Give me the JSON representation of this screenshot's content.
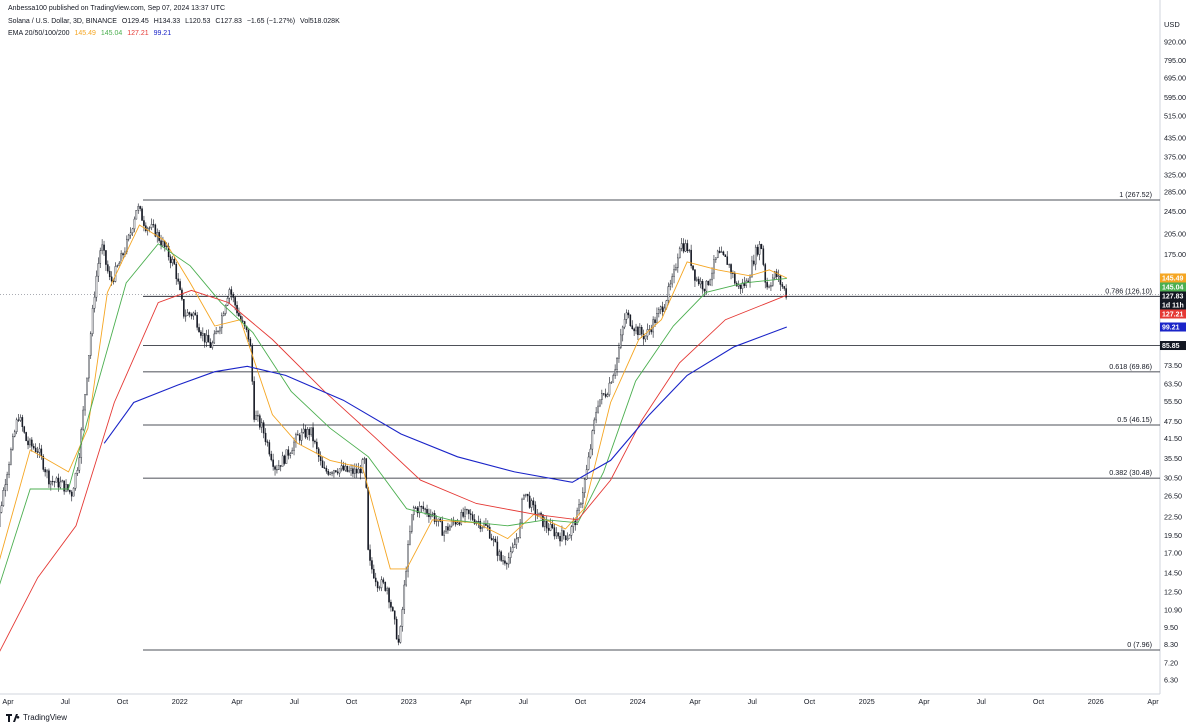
{
  "header": {
    "published": "Anbessa100 published on TradingView.com, Sep 07, 2024 13:37 UTC",
    "symbol": "Solana / U.S. Dollar, 3D, BINANCE",
    "open": "O129.45",
    "high": "H134.33",
    "low": "L120.53",
    "close": "C127.83",
    "change": "−1.65 (−1.27%)",
    "volume": "Vol518.028K",
    "ema_label": "EMA 20/50/100/200",
    "ema20": "145.49",
    "ema50": "145.04",
    "ema100": "127.21",
    "ema200": "99.21"
  },
  "axis_unit": "USD",
  "brand": "TradingView",
  "colors": {
    "ema20": "#f5a623",
    "ema50": "#4caf50",
    "ema100": "#e53935",
    "ema200": "#1a24c8",
    "price_badge": "#131722",
    "level_badge": "#131722",
    "candle": "#131722"
  },
  "chart_data": {
    "type": "candlestick",
    "y_scale": "log",
    "y_ticks": [
      "920.00",
      "795.00",
      "695.00",
      "595.00",
      "515.00",
      "435.00",
      "375.00",
      "325.00",
      "285.00",
      "245.00",
      "205.00",
      "175.00",
      "73.50",
      "63.50",
      "55.50",
      "47.50",
      "41.50",
      "35.50",
      "30.50",
      "26.50",
      "22.50",
      "19.50",
      "17.00",
      "14.50",
      "12.50",
      "10.90",
      "9.50",
      "8.30",
      "7.20",
      "6.30"
    ],
    "x_ticks": [
      "Apr",
      "Jul",
      "Oct",
      "2022",
      "Apr",
      "Jul",
      "Oct",
      "2023",
      "Apr",
      "Jul",
      "Oct",
      "2024",
      "Apr",
      "Jul",
      "Oct",
      "2025",
      "Apr",
      "Jul",
      "Oct",
      "2026",
      "Apr"
    ],
    "fib_levels": [
      {
        "label": "1 (267.52)",
        "value": 267.52
      },
      {
        "label": "0.786 (126.10)",
        "value": 126.1
      },
      {
        "label": "0.618 (69.86)",
        "value": 69.86
      },
      {
        "label": "0.5 (46.15)",
        "value": 46.15
      },
      {
        "label": "0.382 (30.48)",
        "value": 30.48
      },
      {
        "label": "0 (7.96)",
        "value": 7.96
      }
    ],
    "horizontal_level": {
      "label": "85.85",
      "value": 85.85
    },
    "price_badges": [
      {
        "label": "145.49",
        "value": 145.49,
        "color": "#f5a623"
      },
      {
        "label": "145.04",
        "value": 145.04,
        "color": "#4caf50"
      },
      {
        "label": "127.83",
        "value": 127.83,
        "color": "#131722"
      },
      {
        "label": "1d 11h",
        "value": 121.5,
        "color": "#131722"
      },
      {
        "label": "127.21",
        "value": 116.0,
        "color": "#e53935"
      },
      {
        "label": "99.21",
        "value": 99.21,
        "color": "#1a24c8"
      }
    ],
    "price_path": [
      [
        "2021-03-20",
        16.0
      ],
      [
        "2021-04-10",
        30.0
      ],
      [
        "2021-05-01",
        50.0
      ],
      [
        "2021-05-15",
        40.0
      ],
      [
        "2021-06-01",
        38.0
      ],
      [
        "2021-06-20",
        30.0
      ],
      [
        "2021-07-10",
        29.0
      ],
      [
        "2021-07-25",
        27.0
      ],
      [
        "2021-08-05",
        35.0
      ],
      [
        "2021-08-20",
        75.0
      ],
      [
        "2021-09-01",
        140.0
      ],
      [
        "2021-09-10",
        190.0
      ],
      [
        "2021-09-25",
        140.0
      ],
      [
        "2021-10-10",
        165.0
      ],
      [
        "2021-10-25",
        200.0
      ],
      [
        "2021-11-06",
        255.0
      ],
      [
        "2021-11-20",
        220.0
      ],
      [
        "2021-12-05",
        210.0
      ],
      [
        "2021-12-20",
        185.0
      ],
      [
        "2022-01-05",
        160.0
      ],
      [
        "2022-01-20",
        110.0
      ],
      [
        "2022-02-05",
        110.0
      ],
      [
        "2022-02-20",
        92.0
      ],
      [
        "2022-03-05",
        85.0
      ],
      [
        "2022-03-20",
        105.0
      ],
      [
        "2022-04-02",
        135.0
      ],
      [
        "2022-04-20",
        105.0
      ],
      [
        "2022-05-05",
        90.0
      ],
      [
        "2022-05-12",
        50.0
      ],
      [
        "2022-05-25",
        45.0
      ],
      [
        "2022-06-15",
        33.0
      ],
      [
        "2022-07-01",
        36.0
      ],
      [
        "2022-07-20",
        42.0
      ],
      [
        "2022-08-10",
        44.0
      ],
      [
        "2022-08-30",
        32.0
      ],
      [
        "2022-09-20",
        33.0
      ],
      [
        "2022-10-10",
        32.0
      ],
      [
        "2022-10-25",
        32.0
      ],
      [
        "2022-11-05",
        35.0
      ],
      [
        "2022-11-10",
        16.0
      ],
      [
        "2022-11-25",
        13.5
      ],
      [
        "2022-12-10",
        13.0
      ],
      [
        "2022-12-29",
        8.2
      ],
      [
        "2023-01-10",
        16.0
      ],
      [
        "2023-01-20",
        24.0
      ],
      [
        "2023-02-05",
        24.0
      ],
      [
        "2023-02-20",
        23.0
      ],
      [
        "2023-03-10",
        20.0
      ],
      [
        "2023-03-25",
        21.5
      ],
      [
        "2023-04-15",
        23.0
      ],
      [
        "2023-05-01",
        22.0
      ],
      [
        "2023-05-20",
        20.5
      ],
      [
        "2023-06-10",
        16.0
      ],
      [
        "2023-06-25",
        16.5
      ],
      [
        "2023-07-10",
        21.0
      ],
      [
        "2023-07-15",
        28.0
      ],
      [
        "2023-07-30",
        24.0
      ],
      [
        "2023-08-20",
        21.0
      ],
      [
        "2023-09-10",
        19.5
      ],
      [
        "2023-09-25",
        19.5
      ],
      [
        "2023-10-10",
        23.0
      ],
      [
        "2023-10-25",
        33.0
      ],
      [
        "2023-11-10",
        55.0
      ],
      [
        "2023-11-25",
        60.0
      ],
      [
        "2023-12-10",
        75.0
      ],
      [
        "2023-12-25",
        110.0
      ],
      [
        "2024-01-10",
        98.0
      ],
      [
        "2024-01-25",
        92.0
      ],
      [
        "2024-02-10",
        105.0
      ],
      [
        "2024-02-25",
        120.0
      ],
      [
        "2024-03-10",
        145.0
      ],
      [
        "2024-03-20",
        190.0
      ],
      [
        "2024-04-01",
        185.0
      ],
      [
        "2024-04-15",
        145.0
      ],
      [
        "2024-05-01",
        135.0
      ],
      [
        "2024-05-20",
        175.0
      ],
      [
        "2024-06-05",
        165.0
      ],
      [
        "2024-06-20",
        135.0
      ],
      [
        "2024-07-05",
        140.0
      ],
      [
        "2024-07-20",
        180.0
      ],
      [
        "2024-07-28",
        190.0
      ],
      [
        "2024-08-05",
        135.0
      ],
      [
        "2024-08-20",
        150.0
      ],
      [
        "2024-09-07",
        127.83
      ]
    ],
    "ema20": [
      [
        "2021-03-20",
        13.0
      ],
      [
        "2021-05-20",
        38.0
      ],
      [
        "2021-07-20",
        32.0
      ],
      [
        "2021-08-20",
        45.0
      ],
      [
        "2021-09-20",
        130.0
      ],
      [
        "2021-11-10",
        220.0
      ],
      [
        "2021-12-20",
        195.0
      ],
      [
        "2022-01-30",
        140.0
      ],
      [
        "2022-03-10",
        100.0
      ],
      [
        "2022-04-20",
        105.0
      ],
      [
        "2022-06-10",
        50.0
      ],
      [
        "2022-07-20",
        40.0
      ],
      [
        "2022-09-10",
        35.0
      ],
      [
        "2022-11-01",
        33.0
      ],
      [
        "2022-12-15",
        15.0
      ],
      [
        "2023-01-10",
        15.0
      ],
      [
        "2023-02-20",
        22.0
      ],
      [
        "2023-05-01",
        21.5
      ],
      [
        "2023-06-20",
        19.0
      ],
      [
        "2023-08-01",
        23.0
      ],
      [
        "2023-09-20",
        20.5
      ],
      [
        "2023-10-20",
        24.0
      ],
      [
        "2023-12-01",
        55.0
      ],
      [
        "2024-01-15",
        90.0
      ],
      [
        "2024-02-20",
        105.0
      ],
      [
        "2024-04-01",
        165.0
      ],
      [
        "2024-05-20",
        155.0
      ],
      [
        "2024-07-10",
        148.0
      ],
      [
        "2024-08-10",
        155.0
      ],
      [
        "2024-09-07",
        145.49
      ]
    ],
    "ema50": [
      [
        "2021-03-20",
        11.0
      ],
      [
        "2021-05-20",
        28.0
      ],
      [
        "2021-07-20",
        28.0
      ],
      [
        "2021-09-01",
        60.0
      ],
      [
        "2021-10-20",
        140.0
      ],
      [
        "2021-12-10",
        190.0
      ],
      [
        "2022-01-30",
        160.0
      ],
      [
        "2022-03-20",
        120.0
      ],
      [
        "2022-05-10",
        95.0
      ],
      [
        "2022-07-10",
        60.0
      ],
      [
        "2022-09-10",
        45.0
      ],
      [
        "2022-11-10",
        36.0
      ],
      [
        "2023-01-10",
        24.0
      ],
      [
        "2023-03-20",
        22.0
      ],
      [
        "2023-06-20",
        21.0
      ],
      [
        "2023-08-20",
        22.0
      ],
      [
        "2023-10-10",
        21.5
      ],
      [
        "2023-11-20",
        32.0
      ],
      [
        "2024-01-10",
        65.0
      ],
      [
        "2024-03-10",
        100.0
      ],
      [
        "2024-05-01",
        130.0
      ],
      [
        "2024-07-01",
        140.0
      ],
      [
        "2024-09-07",
        145.04
      ]
    ],
    "ema100": [
      [
        "2021-03-20",
        7.0
      ],
      [
        "2021-06-01",
        14.0
      ],
      [
        "2021-08-01",
        21.0
      ],
      [
        "2021-10-01",
        55.0
      ],
      [
        "2021-12-10",
        120.0
      ],
      [
        "2022-02-01",
        132.0
      ],
      [
        "2022-04-01",
        120.0
      ],
      [
        "2022-06-10",
        90.0
      ],
      [
        "2022-09-01",
        60.0
      ],
      [
        "2022-11-20",
        42.0
      ],
      [
        "2023-02-01",
        30.0
      ],
      [
        "2023-05-01",
        25.0
      ],
      [
        "2023-08-01",
        23.0
      ],
      [
        "2023-10-10",
        22.0
      ],
      [
        "2023-12-01",
        30.0
      ],
      [
        "2024-01-20",
        48.0
      ],
      [
        "2024-03-20",
        75.0
      ],
      [
        "2024-06-01",
        105.0
      ],
      [
        "2024-09-07",
        127.21
      ]
    ],
    "ema200": [
      [
        "2021-09-15",
        40.0
      ],
      [
        "2021-11-01",
        55.0
      ],
      [
        "2022-01-10",
        63.0
      ],
      [
        "2022-03-10",
        70.0
      ],
      [
        "2022-05-01",
        73.0
      ],
      [
        "2022-07-01",
        68.0
      ],
      [
        "2022-10-01",
        56.0
      ],
      [
        "2023-01-01",
        43.0
      ],
      [
        "2023-04-01",
        36.0
      ],
      [
        "2023-07-01",
        32.0
      ],
      [
        "2023-10-01",
        29.5
      ],
      [
        "2023-12-01",
        35.0
      ],
      [
        "2024-02-01",
        50.0
      ],
      [
        "2024-04-01",
        68.0
      ],
      [
        "2024-06-15",
        85.0
      ],
      [
        "2024-09-07",
        99.21
      ]
    ]
  }
}
